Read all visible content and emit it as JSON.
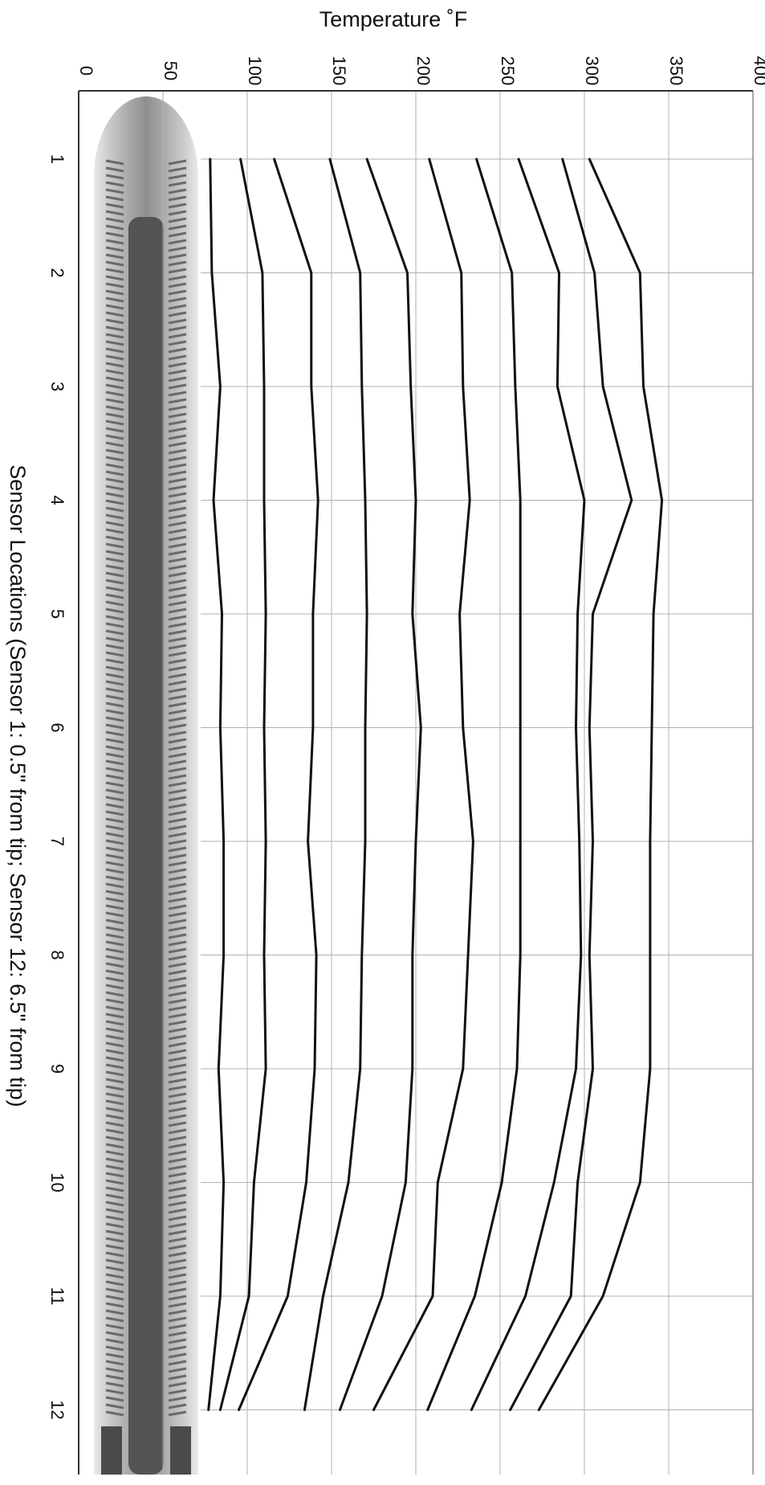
{
  "chart_data": {
    "type": "line",
    "orientation": "rotated-90",
    "title": "",
    "ylabel": "Temperature ˚F",
    "xlabel": "Sensor Locations  (Sensor 1:  0.5\" from tip;  Sensor 12:  6.5\" from tip)",
    "ylim": [
      0,
      400
    ],
    "yticks": [
      "0",
      "50",
      "100",
      "150",
      "200",
      "250",
      "300",
      "350",
      "400"
    ],
    "xticks": [
      "1",
      "2",
      "3",
      "4",
      "5",
      "6",
      "7",
      "8",
      "9",
      "10",
      "11",
      "12"
    ],
    "grid": true,
    "legend": "none",
    "line_color": "#111111",
    "series": [
      {
        "values": [
          78,
          79,
          84,
          80,
          85,
          84,
          86,
          86,
          83,
          86,
          84,
          77
        ]
      },
      {
        "values": [
          96,
          109,
          110,
          110,
          111,
          110,
          111,
          110,
          111,
          104,
          101,
          84
        ]
      },
      {
        "values": [
          116,
          138,
          138,
          142,
          139,
          139,
          136,
          141,
          140,
          135,
          124,
          95
        ]
      },
      {
        "values": [
          149,
          167,
          168,
          170,
          171,
          170,
          170,
          168,
          167,
          160,
          145,
          134
        ]
      },
      {
        "values": [
          171,
          195,
          197,
          200,
          198,
          203,
          200,
          198,
          198,
          194,
          180,
          155
        ]
      },
      {
        "values": [
          208,
          227,
          228,
          232,
          226,
          228,
          234,
          231,
          228,
          213,
          210,
          175
        ]
      },
      {
        "values": [
          236,
          257,
          259,
          262,
          262,
          262,
          262,
          262,
          260,
          251,
          235,
          207
        ]
      },
      {
        "values": [
          261,
          285,
          284,
          300,
          296,
          295,
          297,
          298,
          295,
          282,
          265,
          233
        ]
      },
      {
        "values": [
          287,
          306,
          311,
          328,
          305,
          303,
          305,
          303,
          305,
          296,
          292,
          256
        ]
      },
      {
        "values": [
          303,
          333,
          335,
          346,
          341,
          340,
          339,
          339,
          339,
          333,
          311,
          273
        ]
      }
    ]
  },
  "probe_image": {
    "icon": "coiled-heater-probe-image",
    "colors": [
      "#c9c9c9",
      "#8e8e8e",
      "#545454"
    ]
  }
}
